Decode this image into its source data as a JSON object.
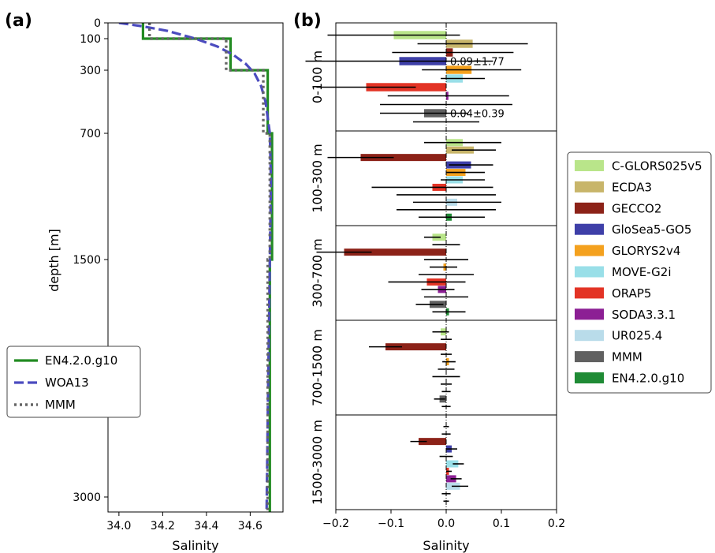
{
  "figure": {
    "panel_a_label": "(a)",
    "panel_b_label": "(b)"
  },
  "chart_data": [
    {
      "type": "line",
      "panel": "(a)",
      "xlabel": "Salinity",
      "ylabel": "depth [m]",
      "xlim": [
        33.95,
        34.75
      ],
      "xticks": [
        34.0,
        34.2,
        34.4,
        34.6
      ],
      "xtick_labels": [
        "34.0",
        "34.2",
        "34.4",
        "34.6"
      ],
      "yscale": "stretched depth",
      "yticks": [
        0,
        100,
        300,
        700,
        1500,
        3000
      ],
      "ytick_labels": [
        "0",
        "100",
        "300",
        "700",
        "1500",
        "3000"
      ],
      "legend_position": "lower-left",
      "series": [
        {
          "name": "EN4.2.0.g10",
          "color": "#228b22",
          "style": "solid",
          "points": [
            [
              34.11,
              0
            ],
            [
              34.11,
              100
            ],
            [
              34.51,
              100
            ],
            [
              34.51,
              300
            ],
            [
              34.68,
              300
            ],
            [
              34.68,
              700
            ],
            [
              34.7,
              700
            ],
            [
              34.7,
              1500
            ],
            [
              34.69,
              1500
            ],
            [
              34.69,
              3000
            ],
            [
              34.69,
              3100
            ]
          ]
        },
        {
          "name": "WOA13",
          "color": "#4b4bbf",
          "style": "dashed",
          "points": [
            [
              34.0,
              0
            ],
            [
              34.1,
              20
            ],
            [
              34.22,
              50
            ],
            [
              34.35,
              100
            ],
            [
              34.45,
              150
            ],
            [
              34.52,
              200
            ],
            [
              34.58,
              260
            ],
            [
              34.62,
              320
            ],
            [
              34.65,
              400
            ],
            [
              34.67,
              500
            ],
            [
              34.68,
              600
            ],
            [
              34.69,
              700
            ],
            [
              34.695,
              1000
            ],
            [
              34.69,
              1500
            ],
            [
              34.685,
              2000
            ],
            [
              34.68,
              2500
            ],
            [
              34.675,
              3100
            ]
          ]
        },
        {
          "name": "MMM",
          "color": "#666666",
          "style": "dotted",
          "points": [
            [
              34.14,
              0
            ],
            [
              34.14,
              100
            ],
            [
              34.49,
              100
            ],
            [
              34.49,
              300
            ],
            [
              34.66,
              300
            ],
            [
              34.66,
              700
            ],
            [
              34.69,
              700
            ],
            [
              34.69,
              1500
            ],
            [
              34.68,
              1500
            ],
            [
              34.68,
              3000
            ],
            [
              34.68,
              3100
            ]
          ]
        }
      ]
    },
    {
      "type": "bar",
      "orientation": "horizontal",
      "panel": "(b)",
      "xlabel": "Salinity",
      "xlim": [
        -0.2,
        0.2
      ],
      "xticks": [
        -0.2,
        -0.1,
        0.0,
        0.1,
        0.2
      ],
      "xtick_labels": [
        "−0.2",
        "−0.1",
        "0.0",
        "0.1",
        "0.2"
      ],
      "layers": [
        "0-100 m",
        "100-300 m",
        "300-700 m",
        "700-1500 m",
        "1500-3000 m"
      ],
      "products": [
        "C-GLORS025v5",
        "ECDA3",
        "GECCO2",
        "GloSea5-GO5",
        "GLORYS2v4",
        "MOVE-G2i",
        "ORAP5",
        "SODA3.3.1",
        "UR025.4",
        "MMM",
        "EN4.2.0.g10"
      ],
      "colors": [
        "#b9e58a",
        "#c8b56a",
        "#8c2218",
        "#3e3fa8",
        "#f4a11e",
        "#99dfe8",
        "#e33325",
        "#8c1f94",
        "#b9dcea",
        "#606060",
        "#1f8b35"
      ],
      "legend_position": "right",
      "values": [
        [
          -0.095,
          0.048,
          0.012,
          -0.085,
          0.046,
          0.03,
          -0.145,
          0.004,
          0.0,
          -0.04,
          0.0
        ],
        [
          0.03,
          0.05,
          -0.155,
          0.045,
          0.035,
          0.03,
          -0.025,
          0.0,
          0.02,
          0.0,
          0.01
        ],
        [
          -0.025,
          0.0,
          -0.185,
          0.0,
          -0.005,
          0.0,
          -0.035,
          -0.015,
          0.0,
          -0.03,
          0.005
        ],
        [
          -0.01,
          0.0,
          -0.11,
          0.0,
          0.005,
          0.0,
          0.0,
          0.0,
          0.0,
          -0.012,
          0.0
        ],
        [
          0.0,
          0.0,
          -0.05,
          0.01,
          0.0,
          0.022,
          0.005,
          0.018,
          0.025,
          0.0,
          0.0
        ]
      ],
      "errors": [
        [
          0.12,
          0.1,
          0.11,
          0.17,
          0.09,
          0.04,
          0.09,
          0.11,
          0.12,
          0.08,
          0.06
        ],
        [
          0.07,
          0.04,
          0.06,
          0.04,
          0.035,
          0.04,
          0.11,
          0.09,
          0.08,
          0.09,
          0.06
        ],
        [
          0.015,
          0.025,
          0.05,
          0.04,
          0.025,
          0.05,
          0.07,
          0.03,
          0.04,
          0.025,
          0.03
        ],
        [
          0.015,
          0.01,
          0.03,
          0.01,
          0.012,
          0.015,
          0.025,
          0.01,
          0.008,
          0.01,
          0.008
        ],
        [
          0.005,
          0.008,
          0.015,
          0.01,
          0.012,
          0.01,
          0.005,
          0.01,
          0.015,
          0.008,
          0.005
        ]
      ],
      "annotations": [
        {
          "text": "0.09±1.77",
          "x": 0.0,
          "layer": "0-100 m",
          "product_index": 3
        },
        {
          "text": "0.04±0.39",
          "x": 0.0,
          "layer": "0-100 m",
          "product_index": 9
        }
      ]
    }
  ]
}
